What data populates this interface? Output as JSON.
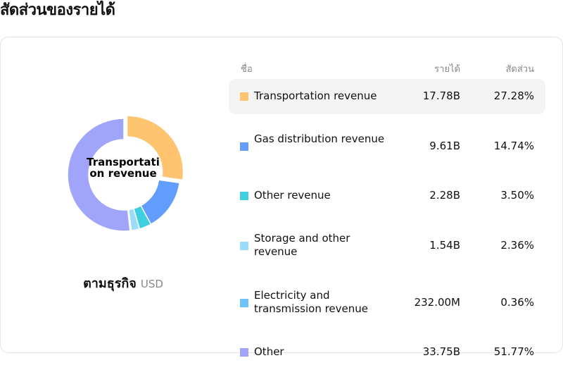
{
  "header": {
    "title": "สัดส่วนของรายได้"
  },
  "donut": {
    "center_label": "Transportation revenue",
    "caption_main": "ตามธุรกิจ",
    "caption_unit": "USD"
  },
  "table": {
    "columns": {
      "name": "ชื่อ",
      "revenue": "รายได้",
      "share": "สัดส่วน"
    },
    "rows": [
      {
        "name": "Transportation revenue",
        "revenue": "17.78B",
        "share": "27.28%",
        "color": "#FFC470"
      },
      {
        "name": "Gas distribution revenue",
        "revenue": "9.61B",
        "share": "14.74%",
        "color": "#619CFF"
      },
      {
        "name": "Other revenue",
        "revenue": "2.28B",
        "share": "3.50%",
        "color": "#3ECFE0"
      },
      {
        "name": "Storage and other revenue",
        "revenue": "1.54B",
        "share": "2.36%",
        "color": "#9ADCFA"
      },
      {
        "name": "Electricity and transmission revenue",
        "revenue": "232.00M",
        "share": "0.36%",
        "color": "#6EC3F7"
      },
      {
        "name": "Other",
        "revenue": "33.75B",
        "share": "51.77%",
        "color": "#A0A4FB"
      }
    ]
  },
  "chart_data": {
    "type": "pie",
    "title": "สัดส่วนของรายได้",
    "subtitle": "ตามธุรกิจ USD",
    "categories": [
      "Transportation revenue",
      "Gas distribution revenue",
      "Other revenue",
      "Storage and other revenue",
      "Electricity and transmission revenue",
      "Other"
    ],
    "values": [
      27.28,
      14.74,
      3.5,
      2.36,
      0.36,
      51.77
    ],
    "amounts": [
      "17.78B",
      "9.61B",
      "2.28B",
      "1.54B",
      "232.00M",
      "33.75B"
    ],
    "colors": [
      "#FFC470",
      "#619CFF",
      "#3ECFE0",
      "#9ADCFA",
      "#6EC3F7",
      "#A0A4FB"
    ],
    "donut": true,
    "highlighted": "Transportation revenue",
    "legend_position": "right (table)"
  }
}
